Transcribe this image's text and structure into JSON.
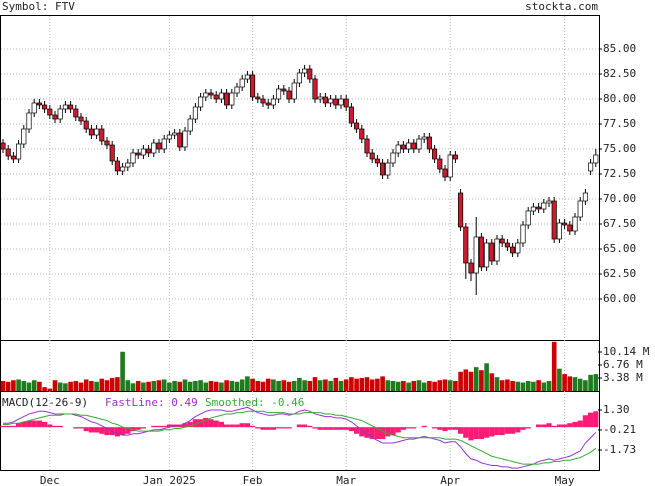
{
  "chart_data": {
    "type": "candlestick",
    "title": "Symbol: FTV",
    "source": "stockta.com",
    "grid": true,
    "categories": [
      null,
      null,
      null,
      null,
      null,
      null,
      null,
      null,
      null,
      "Dec",
      null,
      null,
      null,
      null,
      null,
      null,
      null,
      null,
      null,
      null,
      null,
      null,
      null,
      null,
      null,
      null,
      null,
      null,
      null,
      null,
      null,
      null,
      "Jan 2025",
      null,
      null,
      null,
      null,
      null,
      null,
      null,
      null,
      null,
      null,
      null,
      null,
      null,
      null,
      null,
      "Feb",
      null,
      null,
      null,
      null,
      null,
      null,
      null,
      null,
      null,
      null,
      null,
      null,
      null,
      null,
      null,
      null,
      null,
      "Mar",
      null,
      null,
      null,
      null,
      null,
      null,
      null,
      null,
      null,
      null,
      null,
      null,
      null,
      null,
      null,
      null,
      null,
      null,
      null,
      "Apr",
      null,
      null,
      null,
      null,
      null,
      null,
      null,
      null,
      null,
      null,
      null,
      null,
      null,
      null,
      null,
      null,
      null,
      null,
      null,
      null,
      null,
      "May",
      null,
      null,
      null,
      null,
      null,
      null
    ],
    "open": [
      75.6,
      75.0,
      74.3,
      74.0,
      75.5,
      77.0,
      78.6,
      79.6,
      79.4,
      79.0,
      78.4,
      78.0,
      79.0,
      79.4,
      79.0,
      78.2,
      77.8,
      77.0,
      76.4,
      77.0,
      75.8,
      75.4,
      73.8,
      72.8,
      73.2,
      73.6,
      74.6,
      74.4,
      75.0,
      74.6,
      75.6,
      75.0,
      76.0,
      76.4,
      76.6,
      75.2,
      76.8,
      78.0,
      79.2,
      80.2,
      80.6,
      80.4,
      80.0,
      80.6,
      79.4,
      80.6,
      81.2,
      82.0,
      82.4,
      80.2,
      80.0,
      79.6,
      79.4,
      80.0,
      81.0,
      80.8,
      80.0,
      81.6,
      82.6,
      83.0,
      82.0,
      80.0,
      80.2,
      79.6,
      80.0,
      79.4,
      80.0,
      79.2,
      77.6,
      77.0,
      76.0,
      74.6,
      74.0,
      73.6,
      72.4,
      73.6,
      74.6,
      75.4,
      75.0,
      75.6,
      75.0,
      76.0,
      76.2,
      75.0,
      74.0,
      73.0,
      72.2,
      74.4,
      70.6,
      67.2,
      63.6,
      62.6,
      66.2,
      63.2,
      65.6,
      63.8,
      66.0,
      65.6,
      65.2,
      64.6,
      65.6,
      67.4,
      68.8,
      69.2,
      69.0,
      69.6,
      69.8,
      66.0,
      67.6,
      67.4,
      66.8,
      68.2,
      69.8,
      72.8,
      73.6
    ],
    "high": [
      76.0,
      75.4,
      74.7,
      75.9,
      77.4,
      79.0,
      80.0,
      80.0,
      79.8,
      79.4,
      78.8,
      79.4,
      79.8,
      79.8,
      79.4,
      78.6,
      78.2,
      77.4,
      77.4,
      77.4,
      76.2,
      75.8,
      74.2,
      73.6,
      74.0,
      75.0,
      75.0,
      75.4,
      75.4,
      76.0,
      76.0,
      76.4,
      76.8,
      77.0,
      77.0,
      77.2,
      78.4,
      79.6,
      80.6,
      81.0,
      81.0,
      80.8,
      81.0,
      81.0,
      81.0,
      81.6,
      82.4,
      82.8,
      82.8,
      80.6,
      80.4,
      80.0,
      80.4,
      81.4,
      81.4,
      81.2,
      82.0,
      83.0,
      83.4,
      83.4,
      82.4,
      80.6,
      80.6,
      80.4,
      80.4,
      80.4,
      80.4,
      79.6,
      78.0,
      77.4,
      76.4,
      75.0,
      74.4,
      74.0,
      74.0,
      75.0,
      75.8,
      75.8,
      76.0,
      76.0,
      76.4,
      76.6,
      76.6,
      75.4,
      74.4,
      73.4,
      74.8,
      74.8,
      71.0,
      67.6,
      64.0,
      68.2,
      66.6,
      66.0,
      66.0,
      66.4,
      66.4,
      66.0,
      65.6,
      66.0,
      67.8,
      69.2,
      69.6,
      69.6,
      70.0,
      70.2,
      70.2,
      68.0,
      68.0,
      67.8,
      68.6,
      70.2,
      71.0,
      74.0,
      75.0
    ],
    "low": [
      74.6,
      73.9,
      73.6,
      73.6,
      75.1,
      76.6,
      78.2,
      79.0,
      78.6,
      78.0,
      77.6,
      77.6,
      78.6,
      78.6,
      77.8,
      77.4,
      76.6,
      76.0,
      76.0,
      75.4,
      75.0,
      73.4,
      72.4,
      72.4,
      72.8,
      73.2,
      74.0,
      74.0,
      74.2,
      74.2,
      74.6,
      74.6,
      75.6,
      76.0,
      74.8,
      74.8,
      76.4,
      77.6,
      78.8,
      79.8,
      80.0,
      79.6,
      79.6,
      79.0,
      79.0,
      80.2,
      80.8,
      81.6,
      79.8,
      79.6,
      79.2,
      79.0,
      79.0,
      79.6,
      80.4,
      79.6,
      79.6,
      81.2,
      82.2,
      81.6,
      79.6,
      79.6,
      79.2,
      79.2,
      79.0,
      79.0,
      78.8,
      77.2,
      76.6,
      75.6,
      74.2,
      73.6,
      73.2,
      72.0,
      72.0,
      73.2,
      74.2,
      74.6,
      74.6,
      74.6,
      74.6,
      75.6,
      74.6,
      73.6,
      72.6,
      71.8,
      71.8,
      73.6,
      66.8,
      62.0,
      61.8,
      60.4,
      62.8,
      62.8,
      63.4,
      63.4,
      65.2,
      64.8,
      64.2,
      64.2,
      65.2,
      67.0,
      68.4,
      68.6,
      68.6,
      69.2,
      65.6,
      65.6,
      67.0,
      66.4,
      66.4,
      67.8,
      69.4,
      72.4,
      73.2
    ],
    "close": [
      75.0,
      74.3,
      74.0,
      75.5,
      77.0,
      78.6,
      79.6,
      79.4,
      79.0,
      78.4,
      78.0,
      79.0,
      79.4,
      79.0,
      78.2,
      77.8,
      77.0,
      76.4,
      77.0,
      75.8,
      75.4,
      73.8,
      72.8,
      73.2,
      73.6,
      74.6,
      74.4,
      75.0,
      74.6,
      75.6,
      75.0,
      76.0,
      76.4,
      76.6,
      75.2,
      76.8,
      78.0,
      79.2,
      80.2,
      80.6,
      80.4,
      80.0,
      80.6,
      79.4,
      80.6,
      81.2,
      82.0,
      82.4,
      80.2,
      80.0,
      79.6,
      79.4,
      80.0,
      81.0,
      80.8,
      80.0,
      81.6,
      82.6,
      83.0,
      82.0,
      80.0,
      80.2,
      79.6,
      80.0,
      79.4,
      80.0,
      79.2,
      77.6,
      77.0,
      76.0,
      74.6,
      74.0,
      73.6,
      72.4,
      73.6,
      74.6,
      75.4,
      75.0,
      75.6,
      75.0,
      76.0,
      76.2,
      75.0,
      74.0,
      73.0,
      72.2,
      74.4,
      74.0,
      67.2,
      63.6,
      62.6,
      66.2,
      63.2,
      65.6,
      63.8,
      66.0,
      65.6,
      65.2,
      64.6,
      65.6,
      67.4,
      68.8,
      69.2,
      69.0,
      69.6,
      69.8,
      66.0,
      67.6,
      67.4,
      66.8,
      68.2,
      69.8,
      70.6,
      73.6,
      74.4
    ],
    "up_color": "#ffffff",
    "down_color": "#cc1a2e",
    "ylim": [
      55.9,
      88.4
    ],
    "yticks": [
      {
        "value": 60,
        "label": "60.00"
      },
      {
        "value": 62.5,
        "label": "62.50"
      },
      {
        "value": 65,
        "label": "65.00"
      },
      {
        "value": 67.5,
        "label": "67.50"
      },
      {
        "value": 70,
        "label": "70.00"
      },
      {
        "value": 72.5,
        "label": "72.50"
      },
      {
        "value": 75,
        "label": "75.00"
      },
      {
        "value": 77.5,
        "label": "77.50"
      },
      {
        "value": 80,
        "label": "80.00"
      },
      {
        "value": 82.5,
        "label": "82.50"
      },
      {
        "value": 85,
        "label": "85.00"
      }
    ],
    "volume": {
      "up_color": "#1e7b1e",
      "down_color": "#cc0000",
      "ylim": [
        0,
        13.0
      ],
      "yticks": [
        {
          "value": 3.38,
          "label": "3.38 M"
        },
        {
          "value": 6.76,
          "label": "6.76 M"
        },
        {
          "value": 10.14,
          "label": "10.14 M"
        }
      ],
      "values": [
        2.6,
        2.4,
        2.8,
        3.0,
        2.6,
        2.2,
        2.8,
        2.4,
        1.0,
        0.6,
        2.8,
        2.2,
        2.0,
        2.4,
        2.6,
        2.2,
        3.0,
        2.6,
        2.4,
        3.2,
        2.8,
        3.4,
        3.6,
        10.2,
        2.8,
        2.0,
        2.6,
        2.2,
        2.4,
        2.6,
        2.8,
        3.0,
        2.2,
        2.6,
        2.4,
        3.0,
        2.4,
        2.6,
        2.8,
        2.2,
        2.6,
        2.4,
        2.2,
        2.8,
        2.6,
        2.4,
        3.0,
        3.8,
        3.2,
        2.6,
        2.4,
        3.2,
        3.0,
        2.6,
        2.8,
        2.4,
        2.6,
        3.4,
        2.8,
        2.6,
        3.6,
        2.8,
        3.0,
        2.6,
        3.4,
        2.6,
        3.0,
        3.6,
        3.2,
        3.4,
        3.6,
        3.0,
        3.2,
        3.8,
        2.8,
        2.6,
        2.4,
        2.6,
        2.2,
        2.6,
        2.8,
        2.2,
        2.6,
        2.4,
        2.8,
        3.0,
        2.8,
        2.6,
        5.0,
        5.6,
        5.0,
        6.2,
        5.4,
        7.2,
        4.6,
        3.6,
        2.8,
        3.0,
        2.6,
        2.4,
        2.2,
        2.6,
        2.4,
        2.8,
        2.2,
        2.6,
        12.8,
        5.8,
        4.4,
        3.8,
        3.6,
        3.2,
        2.8,
        4.2,
        4.4
      ]
    },
    "macd": {
      "title": "MACD(12-26-9)",
      "ylim": [
        -3.24,
        2.66
      ],
      "yticks": [
        {
          "value": 1.3,
          "label": "1.30"
        },
        -0.21,
        -1.73
      ],
      "series": [
        {
          "name": "FastLine: 0.49",
          "color": "#9933cc",
          "values": [
            0.3,
            0.3,
            0.4,
            0.6,
            0.8,
            1.0,
            1.1,
            1.2,
            1.2,
            1.1,
            1.0,
            1.0,
            1.0,
            1.0,
            0.9,
            0.8,
            0.6,
            0.4,
            0.3,
            0.1,
            -0.1,
            -0.3,
            -0.5,
            -0.6,
            -0.6,
            -0.5,
            -0.5,
            -0.4,
            -0.3,
            -0.2,
            -0.2,
            -0.1,
            0.0,
            0.1,
            0.1,
            0.3,
            0.5,
            0.8,
            1.0,
            1.2,
            1.3,
            1.3,
            1.3,
            1.2,
            1.2,
            1.3,
            1.4,
            1.5,
            1.3,
            1.1,
            1.0,
            0.9,
            0.9,
            1.0,
            1.0,
            0.9,
            1.0,
            1.2,
            1.3,
            1.2,
            1.0,
            0.9,
            0.8,
            0.8,
            0.7,
            0.7,
            0.6,
            0.4,
            0.1,
            -0.2,
            -0.5,
            -0.8,
            -1.0,
            -1.2,
            -1.2,
            -1.2,
            -1.1,
            -1.0,
            -0.9,
            -0.9,
            -0.8,
            -0.7,
            -0.8,
            -0.9,
            -1.0,
            -1.2,
            -1.1,
            -1.1,
            -1.5,
            -2.0,
            -2.4,
            -2.5,
            -2.7,
            -2.8,
            -2.9,
            -2.9,
            -3.0,
            -3.0,
            -3.1,
            -3.1,
            -3.0,
            -2.9,
            -2.8,
            -2.6,
            -2.5,
            -2.4,
            -2.5,
            -2.4,
            -2.3,
            -2.2,
            -2.0,
            -1.8,
            -1.2,
            -0.8,
            -0.4
          ]
        },
        {
          "name": "Smoothed: -0.46",
          "color": "#33aa33",
          "values": [
            0.2,
            0.2,
            0.3,
            0.3,
            0.4,
            0.5,
            0.6,
            0.7,
            0.8,
            0.9,
            0.9,
            0.9,
            1.0,
            1.0,
            1.0,
            0.9,
            0.9,
            0.8,
            0.7,
            0.6,
            0.5,
            0.3,
            0.2,
            0.0,
            -0.1,
            -0.2,
            -0.3,
            -0.3,
            -0.3,
            -0.3,
            -0.3,
            -0.2,
            -0.2,
            -0.1,
            -0.1,
            0.0,
            0.1,
            0.2,
            0.4,
            0.5,
            0.7,
            0.8,
            0.9,
            1.0,
            1.0,
            1.1,
            1.1,
            1.2,
            1.2,
            1.2,
            1.2,
            1.1,
            1.1,
            1.1,
            1.1,
            1.0,
            1.0,
            1.0,
            1.1,
            1.1,
            1.1,
            1.1,
            1.0,
            1.0,
            0.9,
            0.9,
            0.8,
            0.7,
            0.6,
            0.5,
            0.3,
            0.1,
            -0.1,
            -0.3,
            -0.5,
            -0.6,
            -0.7,
            -0.8,
            -0.8,
            -0.8,
            -0.8,
            -0.8,
            -0.8,
            -0.8,
            -0.8,
            -0.9,
            -0.9,
            -0.9,
            -1.0,
            -1.2,
            -1.4,
            -1.6,
            -1.8,
            -2.0,
            -2.2,
            -2.3,
            -2.4,
            -2.5,
            -2.6,
            -2.7,
            -2.8,
            -2.8,
            -2.8,
            -2.8,
            -2.7,
            -2.7,
            -2.6,
            -2.6,
            -2.5,
            -2.5,
            -2.4,
            -2.3,
            -2.1,
            -1.9,
            -1.6
          ]
        }
      ],
      "histogram": {
        "color": "#ff1a75",
        "values": [
          0.1,
          0.1,
          0.1,
          0.3,
          0.4,
          0.5,
          0.5,
          0.5,
          0.4,
          0.2,
          0.1,
          0.1,
          0.0,
          0.0,
          -0.1,
          -0.1,
          -0.3,
          -0.4,
          -0.4,
          -0.5,
          -0.6,
          -0.6,
          -0.7,
          -0.6,
          -0.5,
          -0.3,
          -0.2,
          -0.1,
          0.0,
          0.1,
          0.1,
          0.1,
          0.2,
          0.2,
          0.2,
          0.3,
          0.4,
          0.6,
          0.6,
          0.7,
          0.6,
          0.5,
          0.4,
          0.2,
          0.2,
          0.2,
          0.3,
          0.3,
          0.1,
          -0.1,
          -0.2,
          -0.2,
          -0.2,
          -0.1,
          -0.1,
          -0.1,
          0.0,
          0.2,
          0.2,
          0.1,
          -0.1,
          -0.2,
          -0.2,
          -0.2,
          -0.2,
          -0.2,
          -0.2,
          -0.3,
          -0.5,
          -0.7,
          -0.8,
          -0.9,
          -0.9,
          -0.9,
          -0.7,
          -0.6,
          -0.4,
          -0.2,
          -0.1,
          -0.1,
          0.0,
          0.1,
          0.0,
          -0.1,
          -0.2,
          -0.3,
          -0.2,
          -0.2,
          -0.5,
          -0.8,
          -1.0,
          -0.9,
          -0.9,
          -0.8,
          -0.7,
          -0.6,
          -0.6,
          -0.5,
          -0.5,
          -0.4,
          -0.2,
          -0.1,
          0.0,
          0.2,
          0.2,
          0.3,
          0.1,
          0.2,
          0.2,
          0.3,
          0.4,
          0.5,
          0.9,
          1.1,
          1.2
        ]
      }
    }
  }
}
